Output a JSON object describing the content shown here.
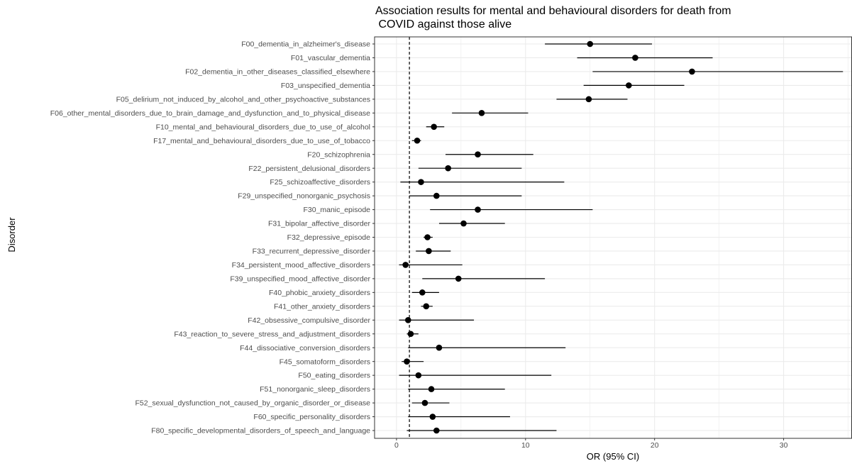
{
  "chart_data": {
    "type": "forest",
    "title_lines": [
      "Association results for mental and behavioural disorders for death from",
      " COVID against those alive"
    ],
    "xlabel": "OR (95% CI)",
    "ylabel": "Disorder",
    "xlim": [
      -1.7,
      35.3
    ],
    "x_ticks": [
      0,
      10,
      20,
      30
    ],
    "reference_line": 1,
    "grid": true,
    "colors": {
      "point": "#000000",
      "grid": "#ebebeb",
      "border": "#333333",
      "tick_text": "#4d4d4d"
    },
    "rows": [
      {
        "label": "F00_dementia_in_alzheimer's_disease",
        "or": 15.0,
        "lo": 11.5,
        "hi": 19.8
      },
      {
        "label": "F01_vascular_dementia",
        "or": 18.5,
        "lo": 14.0,
        "hi": 24.5
      },
      {
        "label": "F02_dementia_in_other_diseases_classified_elsewhere",
        "or": 22.9,
        "lo": 15.2,
        "hi": 34.6
      },
      {
        "label": "F03_unspecified_dementia",
        "or": 18.0,
        "lo": 14.5,
        "hi": 22.3
      },
      {
        "label": "F05_delirium_not_induced_by_alcohol_and_other_psychoactive_substances",
        "or": 14.9,
        "lo": 12.4,
        "hi": 17.9
      },
      {
        "label": "F06_other_mental_disorders_due_to_brain_damage_and_dysfunction_and_to_physical_disease",
        "or": 6.6,
        "lo": 4.3,
        "hi": 10.2
      },
      {
        "label": "F10_mental_and_behavioural_disorders_due_to_use_of_alcohol",
        "or": 2.9,
        "lo": 2.3,
        "hi": 3.7
      },
      {
        "label": "F17_mental_and_behavioural_disorders_due_to_use_of_tobacco",
        "or": 1.6,
        "lo": 1.2,
        "hi": 1.9
      },
      {
        "label": "F20_schizophrenia",
        "or": 6.3,
        "lo": 3.8,
        "hi": 10.6
      },
      {
        "label": "F22_persistent_delusional_disorders",
        "or": 4.0,
        "lo": 1.7,
        "hi": 9.7
      },
      {
        "label": "F25_schizoaffective_disorders",
        "or": 1.9,
        "lo": 0.3,
        "hi": 13.0
      },
      {
        "label": "F29_unspecified_nonorganic_psychosis",
        "or": 3.1,
        "lo": 1.0,
        "hi": 9.7
      },
      {
        "label": "F30_manic_episode",
        "or": 6.3,
        "lo": 2.6,
        "hi": 15.2
      },
      {
        "label": "F31_bipolar_affective_disorder",
        "or": 5.2,
        "lo": 3.3,
        "hi": 8.4
      },
      {
        "label": "F32_depressive_episode",
        "or": 2.4,
        "lo": 2.1,
        "hi": 2.8
      },
      {
        "label": "F33_recurrent_depressive_disorder",
        "or": 2.5,
        "lo": 1.5,
        "hi": 4.2
      },
      {
        "label": "F34_persistent_mood_affective_disorders",
        "or": 0.7,
        "lo": 0.2,
        "hi": 5.1
      },
      {
        "label": "F39_unspecified_mood_affective_disorder",
        "or": 4.8,
        "lo": 2.0,
        "hi": 11.5
      },
      {
        "label": "F40_phobic_anxiety_disorders",
        "or": 2.0,
        "lo": 1.2,
        "hi": 3.3
      },
      {
        "label": "F41_other_anxiety_disorders",
        "or": 2.3,
        "lo": 1.9,
        "hi": 2.8
      },
      {
        "label": "F42_obsessive_compulsive_disorder",
        "or": 0.9,
        "lo": 0.2,
        "hi": 6.0
      },
      {
        "label": "F43_reaction_to_severe_stress_and_adjustment_disorders",
        "or": 1.1,
        "lo": 0.8,
        "hi": 1.7
      },
      {
        "label": "F44_dissociative_conversion_disorders",
        "or": 3.3,
        "lo": 0.9,
        "hi": 13.1
      },
      {
        "label": "F45_somatoform_disorders",
        "or": 0.8,
        "lo": 0.4,
        "hi": 2.1
      },
      {
        "label": "F50_eating_disorders",
        "or": 1.7,
        "lo": 0.2,
        "hi": 12.0
      },
      {
        "label": "F51_nonorganic_sleep_disorders",
        "or": 2.7,
        "lo": 0.9,
        "hi": 8.4
      },
      {
        "label": "F52_sexual_dysfunction_not_caused_by_organic_disorder_or_disease",
        "or": 2.2,
        "lo": 1.2,
        "hi": 4.1
      },
      {
        "label": "F60_specific_personality_disorders",
        "or": 2.8,
        "lo": 0.9,
        "hi": 8.8
      },
      {
        "label": "F80_specific_developmental_disorders_of_speech_and_language",
        "or": 3.1,
        "lo": 0.8,
        "hi": 12.4
      }
    ]
  }
}
